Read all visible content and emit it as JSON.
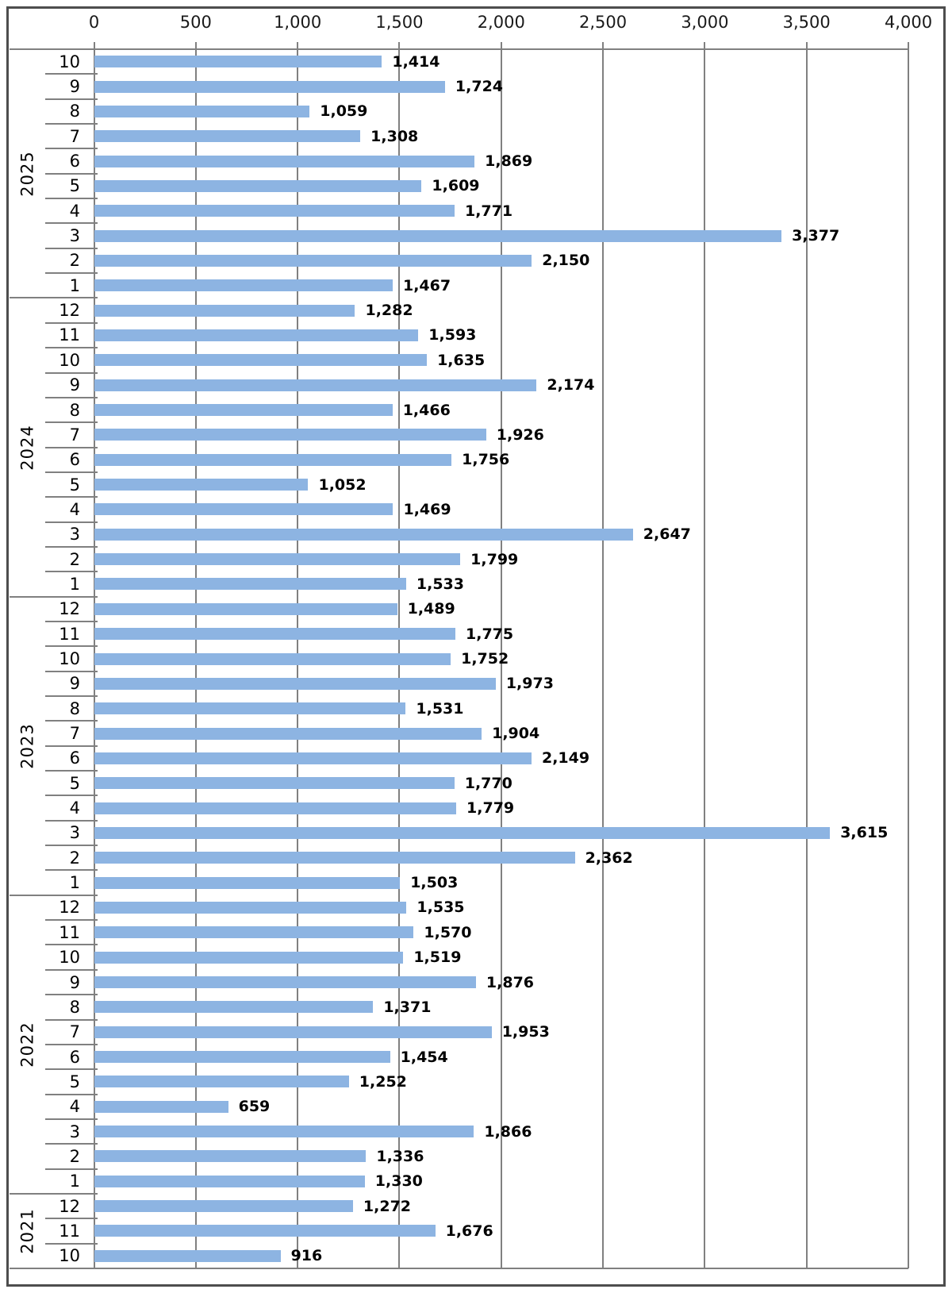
{
  "chart_data": {
    "type": "bar",
    "orientation": "horizontal",
    "title": "",
    "xlabel": "",
    "ylabel": "",
    "legend": "none",
    "grid": "vertical-on",
    "bar_color": "#8DB4E2",
    "line_color": "#808080",
    "axis": {
      "min": 0,
      "max": 4000,
      "step": 500,
      "position": "top",
      "tick_labels": [
        "0",
        "500",
        "1,000",
        "1,500",
        "2,000",
        "2,500",
        "3,000",
        "3,500",
        "4,000"
      ]
    },
    "groups": [
      {
        "year": "2025",
        "rows": [
          {
            "month": "10",
            "value": 1414,
            "label": "1,414"
          },
          {
            "month": "9",
            "value": 1724,
            "label": "1,724"
          },
          {
            "month": "8",
            "value": 1059,
            "label": "1,059"
          },
          {
            "month": "7",
            "value": 1308,
            "label": "1,308"
          },
          {
            "month": "6",
            "value": 1869,
            "label": "1,869"
          },
          {
            "month": "5",
            "value": 1609,
            "label": "1,609"
          },
          {
            "month": "4",
            "value": 1771,
            "label": "1,771"
          },
          {
            "month": "3",
            "value": 3377,
            "label": "3,377"
          },
          {
            "month": "2",
            "value": 2150,
            "label": "2,150"
          },
          {
            "month": "1",
            "value": 1467,
            "label": "1,467"
          }
        ]
      },
      {
        "year": "2024",
        "rows": [
          {
            "month": "12",
            "value": 1282,
            "label": "1,282"
          },
          {
            "month": "11",
            "value": 1593,
            "label": "1,593"
          },
          {
            "month": "10",
            "value": 1635,
            "label": "1,635"
          },
          {
            "month": "9",
            "value": 2174,
            "label": "2,174"
          },
          {
            "month": "8",
            "value": 1466,
            "label": "1,466"
          },
          {
            "month": "7",
            "value": 1926,
            "label": "1,926"
          },
          {
            "month": "6",
            "value": 1756,
            "label": "1,756"
          },
          {
            "month": "5",
            "value": 1052,
            "label": "1,052"
          },
          {
            "month": "4",
            "value": 1469,
            "label": "1,469"
          },
          {
            "month": "3",
            "value": 2647,
            "label": "2,647"
          },
          {
            "month": "2",
            "value": 1799,
            "label": "1,799"
          },
          {
            "month": "1",
            "value": 1533,
            "label": "1,533"
          }
        ]
      },
      {
        "year": "2023",
        "rows": [
          {
            "month": "12",
            "value": 1489,
            "label": "1,489"
          },
          {
            "month": "11",
            "value": 1775,
            "label": "1,775"
          },
          {
            "month": "10",
            "value": 1752,
            "label": "1,752"
          },
          {
            "month": "9",
            "value": 1973,
            "label": "1,973"
          },
          {
            "month": "8",
            "value": 1531,
            "label": "1,531"
          },
          {
            "month": "7",
            "value": 1904,
            "label": "1,904"
          },
          {
            "month": "6",
            "value": 2149,
            "label": "2,149"
          },
          {
            "month": "5",
            "value": 1770,
            "label": "1,770"
          },
          {
            "month": "4",
            "value": 1779,
            "label": "1,779"
          },
          {
            "month": "3",
            "value": 3615,
            "label": "3,615"
          },
          {
            "month": "2",
            "value": 2362,
            "label": "2,362"
          },
          {
            "month": "1",
            "value": 1503,
            "label": "1,503"
          }
        ]
      },
      {
        "year": "2022",
        "rows": [
          {
            "month": "12",
            "value": 1535,
            "label": "1,535"
          },
          {
            "month": "11",
            "value": 1570,
            "label": "1,570"
          },
          {
            "month": "10",
            "value": 1519,
            "label": "1,519"
          },
          {
            "month": "9",
            "value": 1876,
            "label": "1,876"
          },
          {
            "month": "8",
            "value": 1371,
            "label": "1,371"
          },
          {
            "month": "7",
            "value": 1953,
            "label": "1,953"
          },
          {
            "month": "6",
            "value": 1454,
            "label": "1,454"
          },
          {
            "month": "5",
            "value": 1252,
            "label": "1,252"
          },
          {
            "month": "4",
            "value": 659,
            "label": "659"
          },
          {
            "month": "3",
            "value": 1866,
            "label": "1,866"
          },
          {
            "month": "2",
            "value": 1336,
            "label": "1,336"
          },
          {
            "month": "1",
            "value": 1330,
            "label": "1,330"
          }
        ]
      },
      {
        "year": "2021",
        "rows": [
          {
            "month": "12",
            "value": 1272,
            "label": "1,272"
          },
          {
            "month": "11",
            "value": 1676,
            "label": "1,676"
          },
          {
            "month": "10",
            "value": 916,
            "label": "916"
          }
        ]
      }
    ]
  }
}
